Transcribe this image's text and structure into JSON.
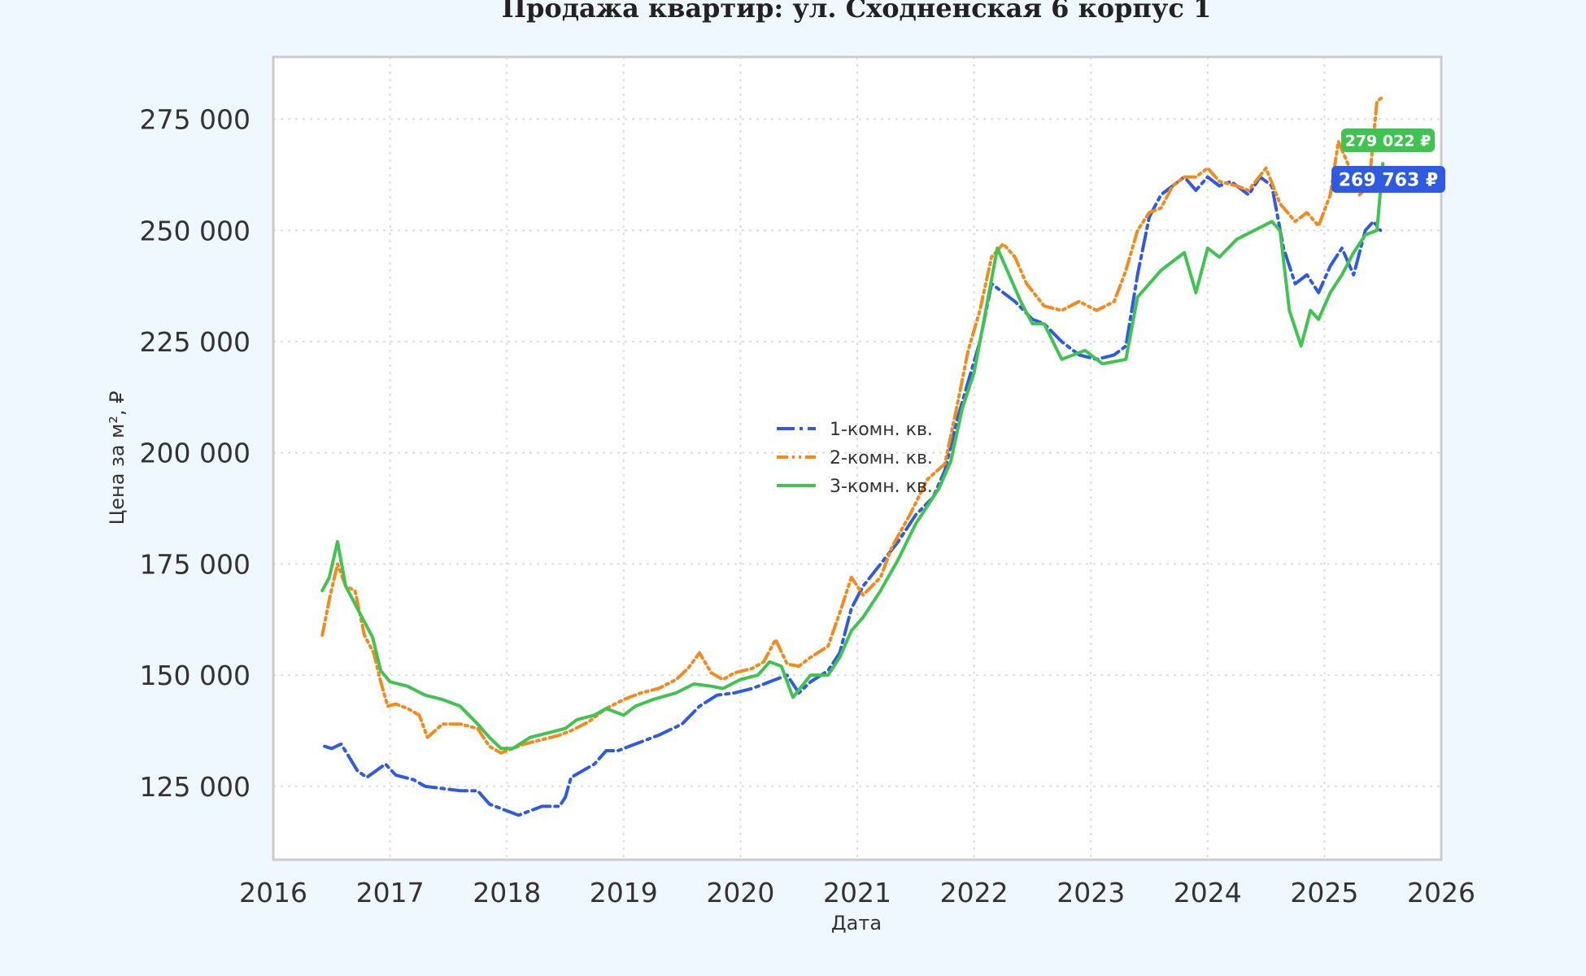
{
  "chart_data": {
    "type": "line",
    "title": "Продажа квартир: ул. Сходненская 6 корпус 1",
    "xlabel": "Дата",
    "ylabel": "Цена за м², ₽",
    "xlim": [
      2016,
      2026
    ],
    "ylim": [
      108500,
      289000
    ],
    "x_ticks": [
      "2016",
      "2017",
      "2018",
      "2019",
      "2020",
      "2021",
      "2022",
      "2023",
      "2024",
      "2025",
      "2026"
    ],
    "y_ticks": [
      125000,
      150000,
      175000,
      200000,
      225000,
      250000,
      275000
    ],
    "y_tick_labels": [
      "125 000",
      "150 000",
      "175 000",
      "200 000",
      "225 000",
      "250 000",
      "275 000"
    ],
    "grid": true,
    "legend_position": "center",
    "series": [
      {
        "name": "1-комн. кв.",
        "color": "#2f5be3",
        "dash": "dashdot",
        "points": [
          [
            2016.44,
            134000
          ],
          [
            2016.5,
            133500
          ],
          [
            2016.58,
            134500
          ],
          [
            2016.64,
            132000
          ],
          [
            2016.72,
            128500
          ],
          [
            2016.8,
            127000
          ],
          [
            2016.88,
            128500
          ],
          [
            2016.96,
            130000
          ],
          [
            2017.05,
            127500
          ],
          [
            2017.2,
            126500
          ],
          [
            2017.3,
            125000
          ],
          [
            2017.45,
            124500
          ],
          [
            2017.6,
            124000
          ],
          [
            2017.75,
            124000
          ],
          [
            2017.85,
            121000
          ],
          [
            2018.0,
            119500
          ],
          [
            2018.1,
            118500
          ],
          [
            2018.2,
            119500
          ],
          [
            2018.3,
            120500
          ],
          [
            2018.45,
            120500
          ],
          [
            2018.5,
            122500
          ],
          [
            2018.55,
            127000
          ],
          [
            2018.65,
            128500
          ],
          [
            2018.75,
            130000
          ],
          [
            2018.85,
            133000
          ],
          [
            2018.95,
            133000
          ],
          [
            2019.1,
            134500
          ],
          [
            2019.3,
            136500
          ],
          [
            2019.5,
            139000
          ],
          [
            2019.65,
            143000
          ],
          [
            2019.8,
            145500
          ],
          [
            2019.95,
            146000
          ],
          [
            2020.1,
            147000
          ],
          [
            2020.3,
            149000
          ],
          [
            2020.4,
            150000
          ],
          [
            2020.5,
            146000
          ],
          [
            2020.6,
            148500
          ],
          [
            2020.75,
            151000
          ],
          [
            2020.85,
            155000
          ],
          [
            2020.95,
            165000
          ],
          [
            2021.05,
            170000
          ],
          [
            2021.2,
            175000
          ],
          [
            2021.35,
            180000
          ],
          [
            2021.5,
            186000
          ],
          [
            2021.65,
            190000
          ],
          [
            2021.75,
            196000
          ],
          [
            2021.85,
            207000
          ],
          [
            2021.95,
            216000
          ],
          [
            2022.05,
            225000
          ],
          [
            2022.15,
            238000
          ],
          [
            2022.25,
            236000
          ],
          [
            2022.35,
            234000
          ],
          [
            2022.5,
            230000
          ],
          [
            2022.6,
            229000
          ],
          [
            2022.75,
            225000
          ],
          [
            2022.9,
            222000
          ],
          [
            2023.05,
            221000
          ],
          [
            2023.2,
            222000
          ],
          [
            2023.3,
            224000
          ],
          [
            2023.4,
            240000
          ],
          [
            2023.5,
            253000
          ],
          [
            2023.6,
            258000
          ],
          [
            2023.7,
            260000
          ],
          [
            2023.8,
            262000
          ],
          [
            2023.9,
            259000
          ],
          [
            2024.0,
            262000
          ],
          [
            2024.1,
            260000
          ],
          [
            2024.2,
            261000
          ],
          [
            2024.35,
            258000
          ],
          [
            2024.45,
            262000
          ],
          [
            2024.55,
            260000
          ],
          [
            2024.65,
            246000
          ],
          [
            2024.75,
            238000
          ],
          [
            2024.85,
            240000
          ],
          [
            2024.95,
            236000
          ],
          [
            2025.05,
            242000
          ],
          [
            2025.15,
            246000
          ],
          [
            2025.25,
            240000
          ],
          [
            2025.35,
            250000
          ],
          [
            2025.42,
            252000
          ],
          [
            2025.48,
            250000
          ]
        ]
      },
      {
        "name": "2-комн. кв.",
        "color": "#f28a1c",
        "dash": "dashdotdot",
        "points": [
          [
            2016.42,
            159000
          ],
          [
            2016.48,
            167000
          ],
          [
            2016.55,
            175000
          ],
          [
            2016.62,
            170000
          ],
          [
            2016.7,
            169000
          ],
          [
            2016.78,
            159000
          ],
          [
            2016.86,
            155000
          ],
          [
            2016.92,
            148500
          ],
          [
            2016.98,
            143000
          ],
          [
            2017.05,
            143500
          ],
          [
            2017.15,
            142500
          ],
          [
            2017.25,
            141000
          ],
          [
            2017.32,
            136000
          ],
          [
            2017.45,
            139000
          ],
          [
            2017.6,
            139000
          ],
          [
            2017.75,
            138000
          ],
          [
            2017.85,
            134000
          ],
          [
            2017.95,
            132500
          ],
          [
            2018.05,
            133500
          ],
          [
            2018.15,
            134500
          ],
          [
            2018.3,
            135500
          ],
          [
            2018.45,
            136500
          ],
          [
            2018.55,
            137500
          ],
          [
            2018.7,
            139500
          ],
          [
            2018.85,
            142500
          ],
          [
            2019.0,
            144500
          ],
          [
            2019.15,
            146000
          ],
          [
            2019.3,
            147000
          ],
          [
            2019.45,
            149000
          ],
          [
            2019.55,
            151500
          ],
          [
            2019.65,
            155000
          ],
          [
            2019.75,
            150500
          ],
          [
            2019.85,
            149000
          ],
          [
            2019.95,
            150500
          ],
          [
            2020.1,
            151500
          ],
          [
            2020.2,
            153000
          ],
          [
            2020.3,
            158000
          ],
          [
            2020.4,
            152500
          ],
          [
            2020.5,
            152000
          ],
          [
            2020.6,
            154000
          ],
          [
            2020.75,
            156500
          ],
          [
            2020.85,
            164000
          ],
          [
            2020.95,
            172000
          ],
          [
            2021.05,
            168000
          ],
          [
            2021.2,
            172000
          ],
          [
            2021.3,
            179000
          ],
          [
            2021.45,
            186000
          ],
          [
            2021.6,
            194000
          ],
          [
            2021.75,
            197500
          ],
          [
            2021.85,
            210000
          ],
          [
            2021.95,
            223000
          ],
          [
            2022.05,
            232000
          ],
          [
            2022.15,
            244000
          ],
          [
            2022.25,
            247000
          ],
          [
            2022.35,
            244000
          ],
          [
            2022.45,
            238000
          ],
          [
            2022.6,
            233000
          ],
          [
            2022.75,
            232000
          ],
          [
            2022.9,
            234000
          ],
          [
            2023.05,
            232000
          ],
          [
            2023.2,
            234000
          ],
          [
            2023.3,
            241000
          ],
          [
            2023.4,
            250000
          ],
          [
            2023.5,
            254000
          ],
          [
            2023.6,
            255000
          ],
          [
            2023.7,
            260000
          ],
          [
            2023.8,
            262000
          ],
          [
            2023.9,
            262000
          ],
          [
            2024.0,
            264000
          ],
          [
            2024.1,
            261000
          ],
          [
            2024.25,
            260000
          ],
          [
            2024.35,
            259000
          ],
          [
            2024.5,
            264000
          ],
          [
            2024.62,
            256000
          ],
          [
            2024.75,
            252000
          ],
          [
            2024.85,
            254000
          ],
          [
            2024.95,
            251000
          ],
          [
            2025.05,
            258000
          ],
          [
            2025.12,
            270000
          ],
          [
            2025.2,
            265000
          ],
          [
            2025.3,
            258000
          ],
          [
            2025.38,
            260000
          ],
          [
            2025.45,
            279000
          ],
          [
            2025.5,
            280000
          ]
        ]
      },
      {
        "name": "3-комн. кв.",
        "color": "#3ec44f",
        "dash": "solid",
        "points": [
          [
            2016.42,
            169000
          ],
          [
            2016.48,
            172000
          ],
          [
            2016.55,
            180000
          ],
          [
            2016.62,
            170000
          ],
          [
            2016.7,
            166000
          ],
          [
            2016.78,
            162000
          ],
          [
            2016.85,
            158500
          ],
          [
            2016.92,
            151000
          ],
          [
            2017.0,
            148500
          ],
          [
            2017.15,
            147500
          ],
          [
            2017.3,
            145500
          ],
          [
            2017.45,
            144500
          ],
          [
            2017.6,
            143000
          ],
          [
            2017.75,
            139000
          ],
          [
            2017.85,
            136000
          ],
          [
            2017.95,
            133500
          ],
          [
            2018.05,
            133500
          ],
          [
            2018.2,
            136000
          ],
          [
            2018.35,
            137000
          ],
          [
            2018.5,
            138000
          ],
          [
            2018.6,
            140000
          ],
          [
            2018.75,
            141000
          ],
          [
            2018.85,
            142500
          ],
          [
            2019.0,
            141000
          ],
          [
            2019.1,
            143000
          ],
          [
            2019.25,
            144500
          ],
          [
            2019.45,
            146000
          ],
          [
            2019.6,
            148000
          ],
          [
            2019.75,
            147500
          ],
          [
            2019.85,
            147000
          ],
          [
            2020.0,
            149000
          ],
          [
            2020.15,
            150000
          ],
          [
            2020.25,
            153000
          ],
          [
            2020.35,
            152000
          ],
          [
            2020.45,
            145000
          ],
          [
            2020.6,
            150000
          ],
          [
            2020.75,
            150000
          ],
          [
            2020.85,
            154000
          ],
          [
            2020.95,
            160000
          ],
          [
            2021.05,
            163000
          ],
          [
            2021.2,
            169000
          ],
          [
            2021.35,
            176000
          ],
          [
            2021.5,
            184000
          ],
          [
            2021.6,
            188000
          ],
          [
            2021.7,
            192000
          ],
          [
            2021.8,
            198000
          ],
          [
            2021.9,
            210000
          ],
          [
            2022.0,
            218000
          ],
          [
            2022.1,
            232000
          ],
          [
            2022.2,
            246000
          ],
          [
            2022.3,
            240000
          ],
          [
            2022.4,
            234000
          ],
          [
            2022.5,
            229000
          ],
          [
            2022.6,
            229000
          ],
          [
            2022.75,
            221000
          ],
          [
            2022.85,
            222000
          ],
          [
            2022.95,
            223000
          ],
          [
            2023.1,
            220000
          ],
          [
            2023.3,
            221000
          ],
          [
            2023.4,
            235000
          ],
          [
            2023.5,
            238000
          ],
          [
            2023.6,
            241000
          ],
          [
            2023.7,
            243000
          ],
          [
            2023.8,
            245000
          ],
          [
            2023.9,
            236000
          ],
          [
            2024.0,
            246000
          ],
          [
            2024.1,
            244000
          ],
          [
            2024.25,
            248000
          ],
          [
            2024.4,
            250000
          ],
          [
            2024.55,
            252000
          ],
          [
            2024.62,
            250000
          ],
          [
            2024.7,
            232000
          ],
          [
            2024.8,
            224000
          ],
          [
            2024.88,
            232000
          ],
          [
            2024.95,
            230000
          ],
          [
            2025.05,
            236000
          ],
          [
            2025.15,
            240000
          ],
          [
            2025.25,
            245000
          ],
          [
            2025.35,
            249000
          ],
          [
            2025.45,
            250000
          ],
          [
            2025.5,
            265000
          ]
        ]
      }
    ],
    "last_value_labels": [
      {
        "text": "279 022 ₽",
        "color": "#3ec44f"
      },
      {
        "text": "269 763 ₽",
        "color": "#2f5be3"
      }
    ]
  }
}
